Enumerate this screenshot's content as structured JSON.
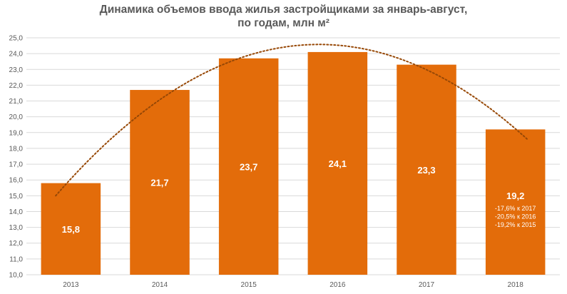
{
  "chart_data": {
    "type": "bar",
    "title_line1": "Динамика объемов ввода жилья застройщиками за январь-август,",
    "title_line2": "по годам, млн м²",
    "categories": [
      "2013",
      "2014",
      "2015",
      "2016",
      "2017",
      "2018"
    ],
    "values": [
      15.8,
      21.7,
      23.7,
      24.1,
      23.3,
      19.2
    ],
    "value_labels": [
      "15,8",
      "21,7",
      "23,7",
      "24,1",
      "23,3",
      "19,2"
    ],
    "ylim": [
      10.0,
      25.0
    ],
    "y_step": 1.0,
    "y_tick_labels": [
      "10,0",
      "11,0",
      "12,0",
      "13,0",
      "14,0",
      "15,0",
      "16,0",
      "17,0",
      "18,0",
      "19,0",
      "20,0",
      "21,0",
      "22,0",
      "23,0",
      "24,0",
      "25,0"
    ],
    "grid": true,
    "trendline": "polynomial",
    "annotations": [
      "-17,6% к 2017",
      "-20,5% к 2016",
      "-19,2% к 2015"
    ],
    "bar_color": "#E36C0A",
    "trend_color": "#974806"
  }
}
